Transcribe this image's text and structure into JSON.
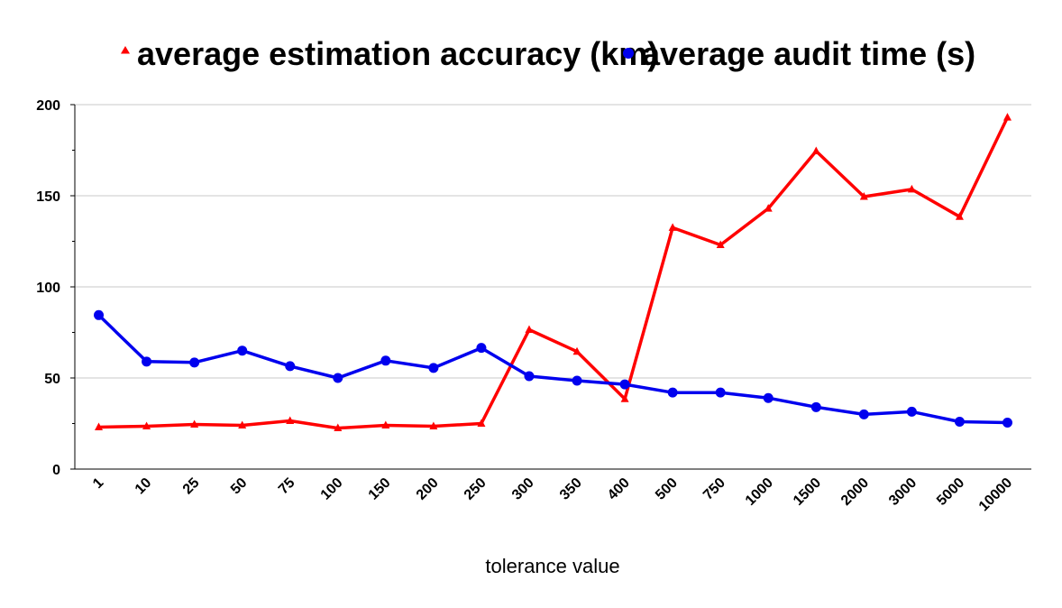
{
  "chart_data": {
    "type": "line",
    "title": "",
    "xlabel": "tolerance value",
    "ylabel": "",
    "ylim": [
      0,
      200
    ],
    "yticks": [
      0,
      50,
      100,
      150,
      200
    ],
    "grid": true,
    "legend_position": "top",
    "categories": [
      "1",
      "10",
      "25",
      "50",
      "75",
      "100",
      "150",
      "200",
      "250",
      "300",
      "350",
      "400",
      "500",
      "750",
      "1000",
      "1500",
      "2000",
      "3000",
      "5000",
      "10000"
    ],
    "series": [
      {
        "name": "average estimation accuracy (km)",
        "color": "#ff0000",
        "marker": "triangle",
        "values": [
          23,
          23.5,
          24.5,
          24,
          26.5,
          22.5,
          24,
          23.5,
          25,
          76.5,
          64.5,
          38.5,
          132.5,
          123,
          143,
          174.5,
          149.5,
          153.5,
          138.5,
          193
        ]
      },
      {
        "name": "average audit time (s)",
        "color": "#0000ee",
        "marker": "circle",
        "values": [
          84.5,
          59,
          58.5,
          65,
          56.5,
          50,
          59.5,
          55.5,
          66.5,
          51,
          48.5,
          46.5,
          42,
          42,
          39,
          34,
          30,
          31.5,
          26,
          25.5
        ]
      }
    ]
  }
}
